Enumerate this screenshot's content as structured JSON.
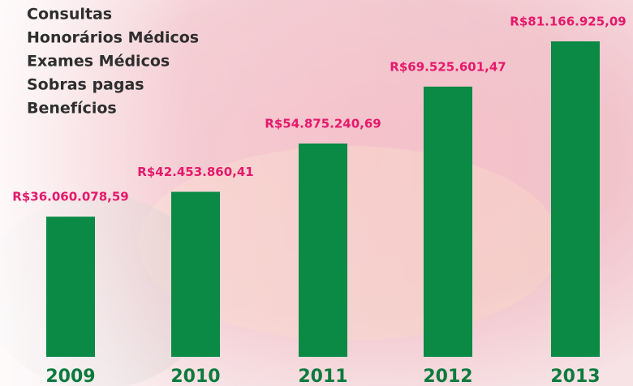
{
  "chart_data": {
    "type": "bar",
    "notes": [
      "Consultas",
      "Honorários Médicos",
      "Exames Médicos",
      "Sobras pagas",
      "Benefícios"
    ],
    "categories": [
      "2009",
      "2010",
      "2011",
      "2012",
      "2013"
    ],
    "values": [
      36060078.59,
      42453860.41,
      54875240.69,
      69525601.47,
      81166925.09
    ],
    "value_labels": [
      "R$36.060.078,59",
      "R$42.453.860,41",
      "R$54.875.240,69",
      "R$69.525.601,47",
      "R$81.166.925,09"
    ],
    "color": "#0a8a45"
  }
}
